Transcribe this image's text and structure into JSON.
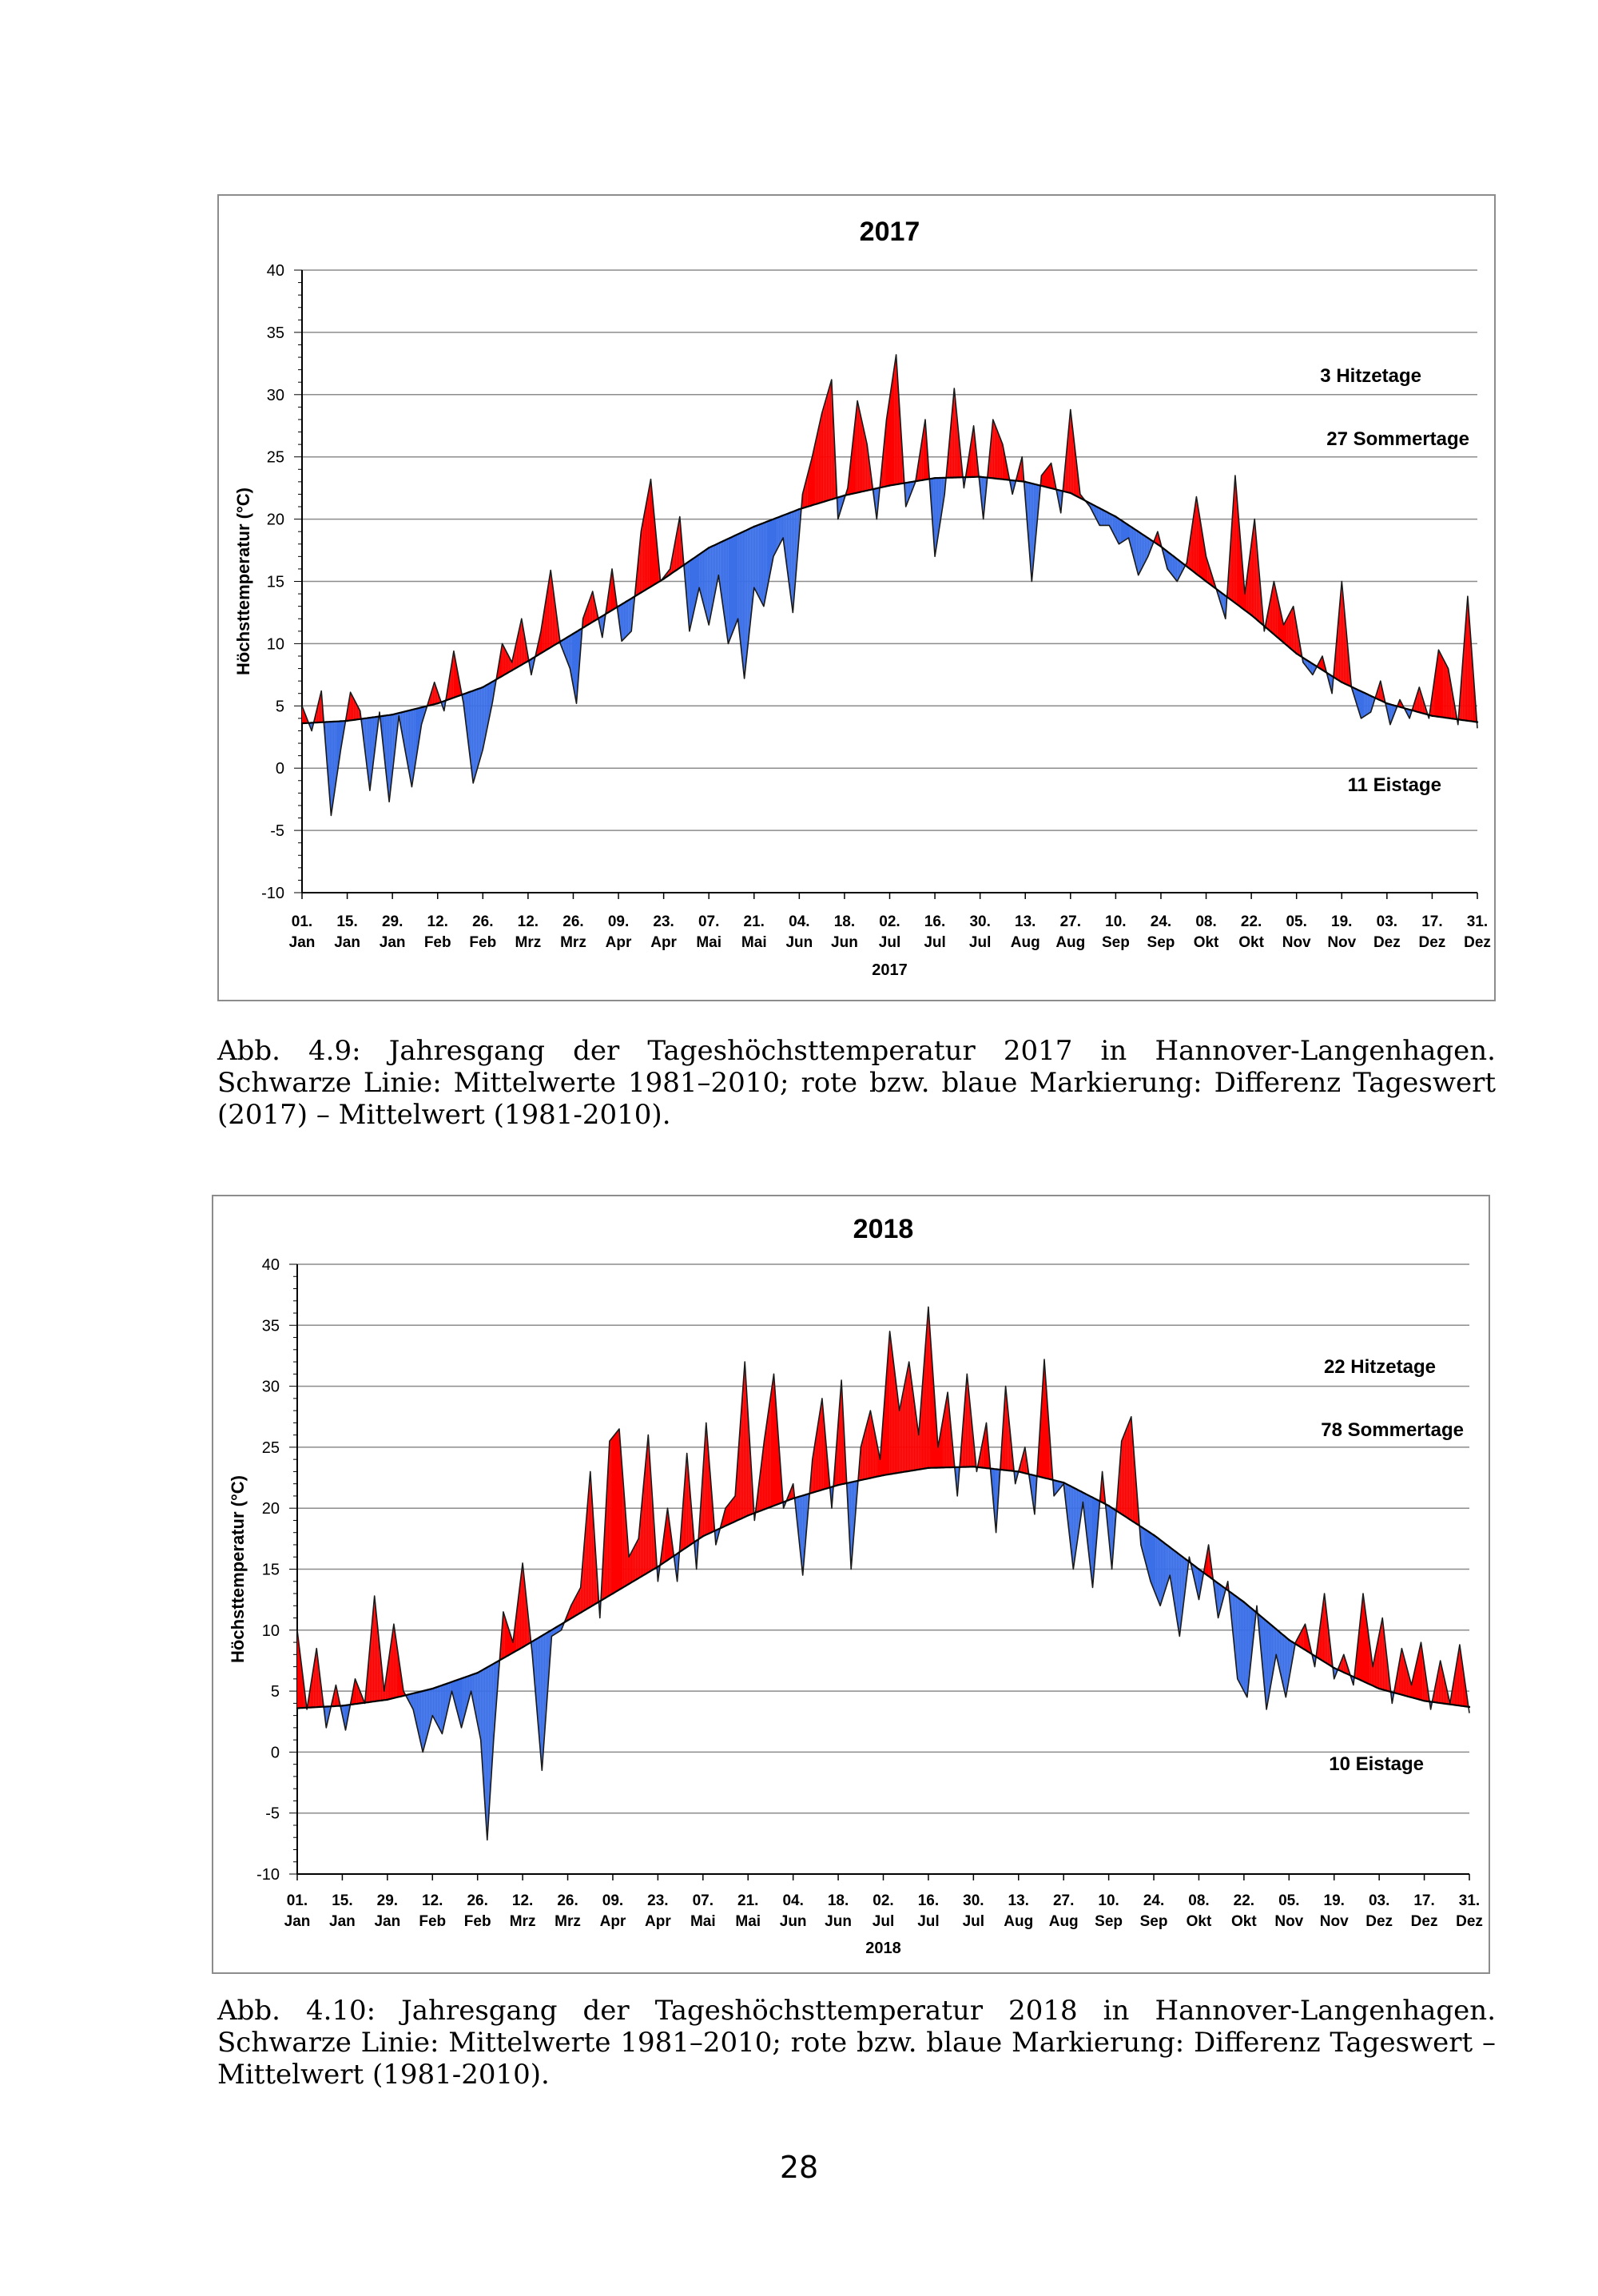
{
  "chart_data": [
    {
      "type": "line",
      "title": "2017",
      "xlabel": "2017",
      "ylabel": "Höchsttemperatur (°C)",
      "ylim": [
        -10,
        40
      ],
      "yticks": [
        -10,
        -5,
        0,
        5,
        10,
        15,
        20,
        25,
        30,
        35,
        40
      ],
      "xlim": [
        1,
        365
      ],
      "grid": true,
      "tick_days": [
        1,
        15,
        29,
        43,
        57,
        71,
        85,
        99,
        113,
        127,
        141,
        155,
        169,
        183,
        197,
        211,
        225,
        239,
        253,
        267,
        281,
        295,
        309,
        323,
        337,
        351,
        365
      ],
      "tick_labels_day": [
        "01.",
        "15.",
        "29.",
        "12.",
        "26.",
        "12.",
        "26.",
        "09.",
        "23.",
        "07.",
        "21.",
        "04.",
        "18.",
        "02.",
        "16.",
        "30.",
        "13.",
        "27.",
        "10.",
        "24.",
        "08.",
        "22.",
        "05.",
        "19.",
        "03.",
        "17.",
        "31."
      ],
      "tick_labels_month": [
        "Jan",
        "Jan",
        "Jan",
        "Feb",
        "Feb",
        "Mrz",
        "Mrz",
        "Apr",
        "Apr",
        "Mai",
        "Mai",
        "Jun",
        "Jun",
        "Jul",
        "Jul",
        "Jul",
        "Aug",
        "Aug",
        "Sep",
        "Sep",
        "Okt",
        "Okt",
        "Nov",
        "Nov",
        "Dez",
        "Dez",
        "Dez"
      ],
      "annotations": [
        "3 Hitzetage",
        "27 Sommertage",
        "11 Eistage"
      ],
      "series": [
        {
          "name": "Mittelwert 1981–2010",
          "color": "#000000",
          "x": [
            1,
            15,
            29,
            43,
            57,
            71,
            85,
            99,
            113,
            127,
            141,
            155,
            169,
            183,
            197,
            211,
            225,
            239,
            253,
            267,
            281,
            295,
            309,
            323,
            337,
            351,
            365
          ],
          "values": [
            3.6,
            3.8,
            4.3,
            5.2,
            6.5,
            8.6,
            10.8,
            13.0,
            15.2,
            17.7,
            19.4,
            20.8,
            21.9,
            22.7,
            23.3,
            23.4,
            23.0,
            22.1,
            20.2,
            17.8,
            15.0,
            12.3,
            9.2,
            6.9,
            5.2,
            4.2,
            3.7
          ]
        },
        {
          "name": "Tageswert 2017",
          "x": [
            1,
            4,
            7,
            10,
            13,
            16,
            19,
            22,
            25,
            28,
            31,
            35,
            38,
            42,
            45,
            48,
            51,
            54,
            57,
            60,
            63,
            66,
            69,
            72,
            75,
            78,
            81,
            84,
            86,
            88,
            91,
            94,
            97,
            100,
            103,
            106,
            109,
            112,
            115,
            118,
            121,
            124,
            127,
            130,
            133,
            136,
            138,
            141,
            144,
            147,
            150,
            153,
            156,
            159,
            162,
            165,
            167,
            170,
            173,
            176,
            179,
            182,
            185,
            188,
            191,
            194,
            197,
            200,
            203,
            206,
            209,
            212,
            215,
            218,
            221,
            224,
            227,
            230,
            233,
            236,
            239,
            242,
            245,
            248,
            251,
            254,
            257,
            260,
            263,
            266,
            269,
            272,
            275,
            278,
            281,
            284,
            287,
            290,
            293,
            296,
            299,
            302,
            305,
            308,
            311,
            314,
            317,
            320,
            323,
            326,
            329,
            332,
            335,
            338,
            341,
            344,
            347,
            350,
            353,
            356,
            359,
            362,
            365
          ],
          "values": [
            5.0,
            3.0,
            6.2,
            -3.8,
            1.5,
            6.1,
            4.6,
            -1.8,
            4.5,
            -2.7,
            4.2,
            -1.5,
            3.5,
            6.9,
            4.6,
            9.4,
            5.2,
            -1.2,
            1.5,
            5.3,
            10.0,
            8.5,
            12.0,
            7.5,
            11.0,
            15.9,
            10.0,
            8.0,
            5.2,
            12.0,
            14.2,
            10.5,
            16.0,
            10.2,
            11.0,
            19.0,
            23.2,
            15.0,
            16.0,
            20.2,
            11.0,
            14.5,
            11.5,
            15.5,
            10.0,
            12.0,
            7.2,
            14.5,
            13.0,
            17.0,
            18.5,
            12.5,
            22.0,
            25.0,
            28.5,
            31.2,
            20.0,
            22.5,
            29.5,
            26.0,
            20.0,
            28.0,
            33.2,
            21.0,
            23.0,
            28.0,
            17.0,
            22.0,
            30.5,
            22.5,
            27.5,
            20.0,
            28.0,
            26.0,
            22.0,
            25.0,
            15.0,
            23.5,
            24.5,
            20.5,
            28.8,
            22.0,
            21.0,
            19.5,
            19.5,
            18.0,
            18.5,
            15.5,
            17.0,
            19.0,
            16.0,
            15.0,
            16.5,
            21.8,
            17.0,
            14.5,
            12.0,
            23.5,
            14.0,
            20.0,
            11.0,
            15.0,
            11.5,
            13.0,
            8.5,
            7.5,
            9.0,
            6.0,
            15.0,
            6.5,
            4.0,
            4.5,
            7.0,
            3.5,
            5.5,
            4.0,
            6.5,
            4.0,
            9.5,
            8.0,
            3.5,
            13.8,
            3.2
          ]
        }
      ]
    },
    {
      "type": "line",
      "title": "2018",
      "xlabel": "2018",
      "ylabel": "Höchsttemperatur (°C)",
      "ylim": [
        -10,
        40
      ],
      "yticks": [
        -10,
        -5,
        0,
        5,
        10,
        15,
        20,
        25,
        30,
        35,
        40
      ],
      "xlim": [
        1,
        365
      ],
      "grid": true,
      "tick_days": [
        1,
        15,
        29,
        43,
        57,
        71,
        85,
        99,
        113,
        127,
        141,
        155,
        169,
        183,
        197,
        211,
        225,
        239,
        253,
        267,
        281,
        295,
        309,
        323,
        337,
        351,
        365
      ],
      "tick_labels_day": [
        "01.",
        "15.",
        "29.",
        "12.",
        "26.",
        "12.",
        "26.",
        "09.",
        "23.",
        "07.",
        "21.",
        "04.",
        "18.",
        "02.",
        "16.",
        "30.",
        "13.",
        "27.",
        "10.",
        "24.",
        "08.",
        "22.",
        "05.",
        "19.",
        "03.",
        "17.",
        "31."
      ],
      "tick_labels_month": [
        "Jan",
        "Jan",
        "Jan",
        "Feb",
        "Feb",
        "Mrz",
        "Mrz",
        "Apr",
        "Apr",
        "Mai",
        "Mai",
        "Jun",
        "Jun",
        "Jul",
        "Jul",
        "Jul",
        "Aug",
        "Aug",
        "Sep",
        "Sep",
        "Okt",
        "Okt",
        "Nov",
        "Nov",
        "Dez",
        "Dez",
        "Dez"
      ],
      "annotations": [
        "22 Hitzetage",
        "78 Sommertage",
        "10 Eistage"
      ],
      "series": [
        {
          "name": "Mittelwert 1981–2010",
          "color": "#000000",
          "x": [
            1,
            15,
            29,
            43,
            57,
            71,
            85,
            99,
            113,
            127,
            141,
            155,
            169,
            183,
            197,
            211,
            225,
            239,
            253,
            267,
            281,
            295,
            309,
            323,
            337,
            351,
            365
          ],
          "values": [
            3.6,
            3.8,
            4.3,
            5.2,
            6.5,
            8.6,
            10.8,
            13.0,
            15.2,
            17.7,
            19.4,
            20.8,
            21.9,
            22.7,
            23.3,
            23.4,
            23.0,
            22.1,
            20.2,
            17.8,
            15.0,
            12.3,
            9.2,
            6.9,
            5.2,
            4.2,
            3.7
          ]
        },
        {
          "name": "Tageswert 2018",
          "x": [
            1,
            4,
            7,
            10,
            13,
            16,
            19,
            22,
            25,
            28,
            31,
            34,
            37,
            40,
            43,
            46,
            49,
            52,
            55,
            58,
            60,
            62,
            65,
            68,
            71,
            74,
            77,
            80,
            83,
            86,
            89,
            92,
            95,
            98,
            101,
            104,
            107,
            110,
            113,
            116,
            119,
            122,
            125,
            128,
            131,
            134,
            137,
            140,
            143,
            146,
            149,
            152,
            155,
            158,
            161,
            164,
            167,
            170,
            173,
            176,
            179,
            182,
            185,
            188,
            191,
            194,
            197,
            200,
            203,
            206,
            209,
            212,
            215,
            218,
            221,
            224,
            227,
            230,
            233,
            236,
            239,
            242,
            245,
            248,
            251,
            254,
            257,
            260,
            263,
            266,
            269,
            272,
            275,
            278,
            281,
            284,
            287,
            290,
            293,
            296,
            299,
            302,
            305,
            308,
            311,
            314,
            317,
            320,
            323,
            326,
            329,
            332,
            335,
            338,
            341,
            344,
            347,
            350,
            353,
            356,
            359,
            362,
            365
          ],
          "values": [
            10.0,
            3.5,
            8.5,
            2.0,
            5.5,
            1.8,
            6.0,
            4.0,
            12.8,
            5.0,
            10.5,
            5.0,
            3.5,
            0.0,
            3.0,
            1.5,
            5.0,
            2.0,
            5.0,
            1.0,
            -7.2,
            1.0,
            11.5,
            9.0,
            15.5,
            8.0,
            -1.5,
            9.5,
            10.0,
            12.0,
            13.5,
            23.0,
            11.0,
            25.5,
            26.5,
            16.0,
            17.5,
            26.0,
            14.0,
            20.0,
            14.0,
            24.5,
            15.0,
            27.0,
            17.0,
            20.0,
            21.0,
            32.0,
            19.0,
            25.5,
            31.0,
            20.0,
            22.0,
            14.5,
            24.0,
            29.0,
            20.0,
            30.5,
            15.0,
            25.0,
            28.0,
            24.0,
            34.5,
            28.0,
            32.0,
            26.0,
            36.5,
            25.0,
            29.5,
            21.0,
            31.0,
            23.0,
            27.0,
            18.0,
            30.0,
            22.0,
            25.0,
            19.5,
            32.2,
            21.0,
            22.0,
            15.0,
            20.5,
            13.5,
            23.0,
            15.0,
            25.5,
            27.5,
            17.0,
            14.0,
            12.0,
            14.5,
            9.5,
            16.0,
            12.5,
            17.0,
            11.0,
            14.0,
            6.0,
            4.5,
            12.0,
            3.5,
            8.0,
            4.5,
            9.0,
            10.5,
            7.0,
            13.0,
            6.0,
            8.0,
            5.5,
            13.0,
            7.0,
            11.0,
            4.0,
            8.5,
            5.5,
            9.0,
            3.5,
            7.5,
            4.0,
            8.8,
            3.2
          ]
        }
      ]
    }
  ],
  "captions": [
    "Abb. 4.9: Jahresgang der Tageshöchsttemperatur 2017 in Hannover-Langenhagen. Schwarze Linie: Mittelwerte 1981–2010; rote bzw. blaue Markierung: Differenz Tageswert (2017) – Mittelwert (1981-2010).",
    "Abb. 4.10: Jahresgang der Tageshöchsttemperatur 2018 in Hannover-Langenhagen. Schwarze Linie: Mittelwerte 1981–2010; rote bzw. blaue Markierung: Differenz Tageswert – Mittelwert (1981-2010)."
  ],
  "page_number": "28",
  "colors": {
    "above": "#ff0000",
    "below": "#3a6fe8",
    "mean": "#000000",
    "grid": "#8c8c8c",
    "frame": "#8c8c8c"
  }
}
